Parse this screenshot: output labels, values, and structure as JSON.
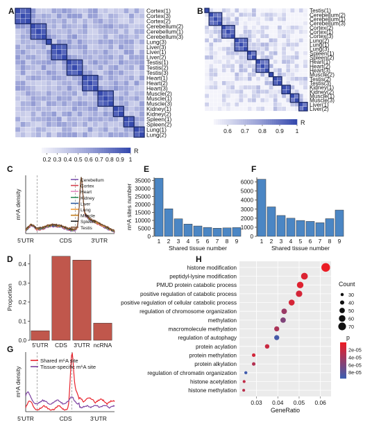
{
  "panels": {
    "A": "A",
    "B": "B",
    "C": "C",
    "D": "D",
    "E": "E",
    "F": "F",
    "G": "G",
    "H": "H"
  },
  "chart_data": [
    {
      "panel": "A",
      "type": "heatmap",
      "row_labels": [
        "Cortex(1)",
        "Cortex(3)",
        "Cortex(2)",
        "Cerebellum(2)",
        "Cerebellum(1)",
        "Cerebellum(3)",
        "Lung(3)",
        "Liver(3)",
        "Liver(1)",
        "Liver(2)",
        "Testis(1)",
        "Testis(2)",
        "Testis(3)",
        "Heart(1)",
        "Heart(2)",
        "Heart(3)",
        "Muscle(2)",
        "Muscle(1)",
        "Muscle(3)",
        "Kidney(1)",
        "Kidney(2)",
        "Spleen(1)",
        "Spleen(2)",
        "Lung(1)",
        "Lung(2)"
      ],
      "groups": [
        3,
        3,
        1,
        3,
        3,
        3,
        3,
        2,
        2,
        2
      ],
      "colorbar": {
        "label": "R",
        "ticks": [
          "0.2",
          "0.3",
          "0.4",
          "0.5",
          "0.6",
          "0.7",
          "0.8",
          "0.9",
          "1"
        ],
        "range": [
          0.15,
          1
        ]
      }
    },
    {
      "panel": "B",
      "type": "heatmap",
      "row_labels": [
        "Testis(1)",
        "Cerebellum(2)",
        "Cerebellum(1)",
        "Cerebellum(3)",
        "Cortex(2)",
        "Cortex(1)",
        "Cortex(3)",
        "Lung(2)",
        "Lung(1)",
        "Lung(3)",
        "Spleen(1)",
        "Spleen(2)",
        "Heart(1)",
        "Heart(2)",
        "Heart(3)",
        "Muscle(2)",
        "Testis(2)",
        "Testis(3)",
        "Kidney(1)",
        "Kidney(2)",
        "Muscle(1)",
        "Muscle(3)",
        "Liver(1)",
        "Liver(2)"
      ],
      "groups": [
        1,
        3,
        3,
        3,
        2,
        3,
        1,
        2,
        2,
        2,
        2
      ],
      "colorbar": {
        "label": "R",
        "ticks": [
          "0.6",
          "0.7",
          "0.8",
          "0.9",
          "1"
        ],
        "range": [
          0.52,
          1
        ]
      }
    },
    {
      "panel": "C",
      "type": "line",
      "ylabel": "m⁶A density",
      "x_regions": [
        "5'UTR",
        "CDS",
        "3'UTR"
      ],
      "series": [
        {
          "name": "Cerebellum",
          "color": "#7b52ae"
        },
        {
          "name": "Cortex",
          "color": "#d6404e"
        },
        {
          "name": "Heart",
          "color": "#e58bc1"
        },
        {
          "name": "Kidney",
          "color": "#2e8b57"
        },
        {
          "name": "Liver",
          "color": "#2c5aa0"
        },
        {
          "name": "Lung",
          "color": "#f29d3a"
        },
        {
          "name": "Muscle",
          "color": "#c47c1a"
        },
        {
          "name": "Spleen",
          "color": "#222222"
        },
        {
          "name": "Testis",
          "color": "#8c5a3c"
        }
      ]
    },
    {
      "panel": "D",
      "type": "bar",
      "categories": [
        "5'UTR",
        "CDS",
        "3'UTR",
        "ncRNA"
      ],
      "values": [
        0.05,
        0.44,
        0.42,
        0.09
      ],
      "ylabel": "Proportion",
      "ylim": [
        0,
        0.45
      ],
      "yticks": [
        "0.0",
        "0.1",
        "0.2",
        "0.3",
        "0.4"
      ],
      "color": "#c0574c"
    },
    {
      "panel": "E",
      "type": "bar",
      "categories": [
        "1",
        "2",
        "3",
        "4",
        "5",
        "6",
        "7",
        "8",
        "9"
      ],
      "values": [
        36500,
        17300,
        11000,
        7700,
        6500,
        5600,
        5100,
        5300,
        5500
      ],
      "xlabel": "Shared tissue number",
      "ylabel": "m⁶A sites number",
      "ylim": [
        0,
        37000
      ],
      "yticks": [
        "0",
        "5000",
        "10000",
        "15000",
        "20000",
        "25000",
        "30000",
        "35000"
      ],
      "color": "#4b86c4"
    },
    {
      "panel": "F",
      "type": "bar",
      "categories": [
        "1",
        "2",
        "3",
        "4",
        "5",
        "6",
        "7",
        "8",
        "9"
      ],
      "values": [
        6300,
        3250,
        2300,
        2000,
        1750,
        1650,
        1500,
        1950,
        2900
      ],
      "xlabel": "Shared tissue number",
      "ylim": [
        0,
        6500
      ],
      "yticks": [
        "0",
        "1000",
        "2000",
        "3000",
        "4000",
        "5000",
        "6000"
      ],
      "color": "#4b86c4"
    },
    {
      "panel": "G",
      "type": "line",
      "ylabel": "m⁶A density",
      "x_regions": [
        "5'UTR",
        "CDS",
        "3'UTR"
      ],
      "series": [
        {
          "name": "Shared m⁶A site",
          "color": "#e8202a"
        },
        {
          "name": "Tissue-specific m⁶A site",
          "color": "#7b3fa0"
        }
      ]
    },
    {
      "panel": "H",
      "type": "scatter",
      "categories": [
        "histone modification",
        "peptidyl-lysine modification",
        "PMUD protein catabolic process",
        "positive regulation of catabolic process",
        "positive regulation of cellular catabolic process",
        "regulation of chromosome organization",
        "methylation",
        "macromolecule methylation",
        "regulation of autophagy",
        "protein acylation",
        "protein methylation",
        "protein alkylation",
        "regulation of chromatin organization",
        "histone acetylation",
        "histone methylation"
      ],
      "gene_ratio": [
        0.0625,
        0.0525,
        0.0505,
        0.05,
        0.0465,
        0.043,
        0.0425,
        0.0395,
        0.0395,
        0.035,
        0.0287,
        0.0287,
        0.025,
        0.0242,
        0.024
      ],
      "count": [
        78,
        62,
        60,
        59,
        55,
        51,
        50,
        47,
        47,
        42,
        34,
        34,
        30,
        29,
        28
      ],
      "p": [
        1e-06,
        1e-05,
        8e-06,
        1.4e-05,
        1.3e-05,
        4.5e-05,
        6e-05,
        3.6e-05,
        9.2e-05,
        2e-05,
        1.5e-05,
        3.2e-05,
        9.5e-05,
        2.5e-05,
        2.8e-05
      ],
      "xlabel": "GeneRatio",
      "xticks": [
        "0.03",
        "0.04",
        "0.05",
        "0.06"
      ],
      "xlim": [
        0.022,
        0.065
      ],
      "count_legend": {
        "title": "Count",
        "values": [
          "30",
          "40",
          "50",
          "60",
          "70"
        ]
      },
      "p_legend": {
        "title": "p",
        "ticks": [
          "2e-05",
          "4e-05",
          "6e-05",
          "8e-05"
        ]
      }
    }
  ]
}
